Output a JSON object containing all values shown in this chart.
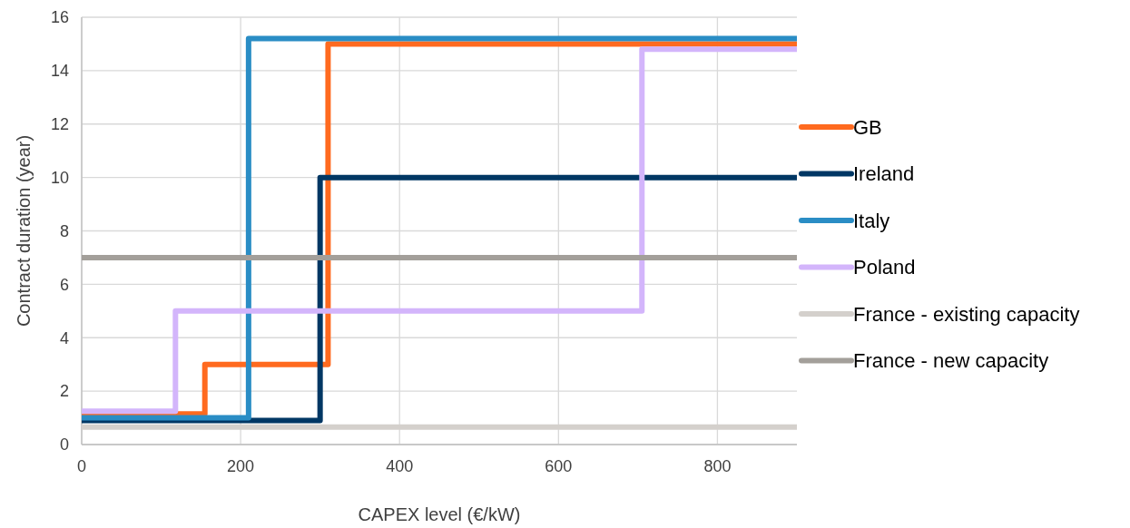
{
  "chart_data": {
    "type": "step",
    "xlabel": "CAPEX level (€/kW)",
    "ylabel": "Contract duration (year)",
    "xlim": [
      0,
      900
    ],
    "xticks": [
      0,
      200,
      400,
      600,
      800
    ],
    "ylim": [
      0,
      16
    ],
    "yticks": [
      0,
      2,
      4,
      6,
      8,
      10,
      12,
      14,
      16
    ],
    "grid": true,
    "legend": "right",
    "line_style": "solid",
    "marker": "none",
    "series": [
      {
        "name": "GB",
        "color": "#ff6a1f",
        "x": [
          0,
          155,
          310,
          900
        ],
        "values": [
          1.15,
          3,
          15,
          15
        ]
      },
      {
        "name": "Ireland",
        "color": "#003764",
        "x": [
          0,
          300,
          900
        ],
        "values": [
          0.9,
          10,
          10
        ]
      },
      {
        "name": "Italy",
        "color": "#2a8dc5",
        "x": [
          0,
          210,
          900
        ],
        "values": [
          1,
          15.2,
          15.2
        ]
      },
      {
        "name": "Poland",
        "color": "#d3b5fb",
        "x": [
          0,
          118,
          705,
          900
        ],
        "values": [
          1.25,
          5,
          14.8,
          14.8
        ]
      },
      {
        "name": "France - existing capacity",
        "color": "#d4d0cc",
        "x": [
          0,
          900
        ],
        "values": [
          0.65,
          0.65
        ]
      },
      {
        "name": "France - new capacity",
        "color": "#a39f9a",
        "x": [
          0,
          900
        ],
        "values": [
          7,
          7
        ]
      }
    ]
  }
}
